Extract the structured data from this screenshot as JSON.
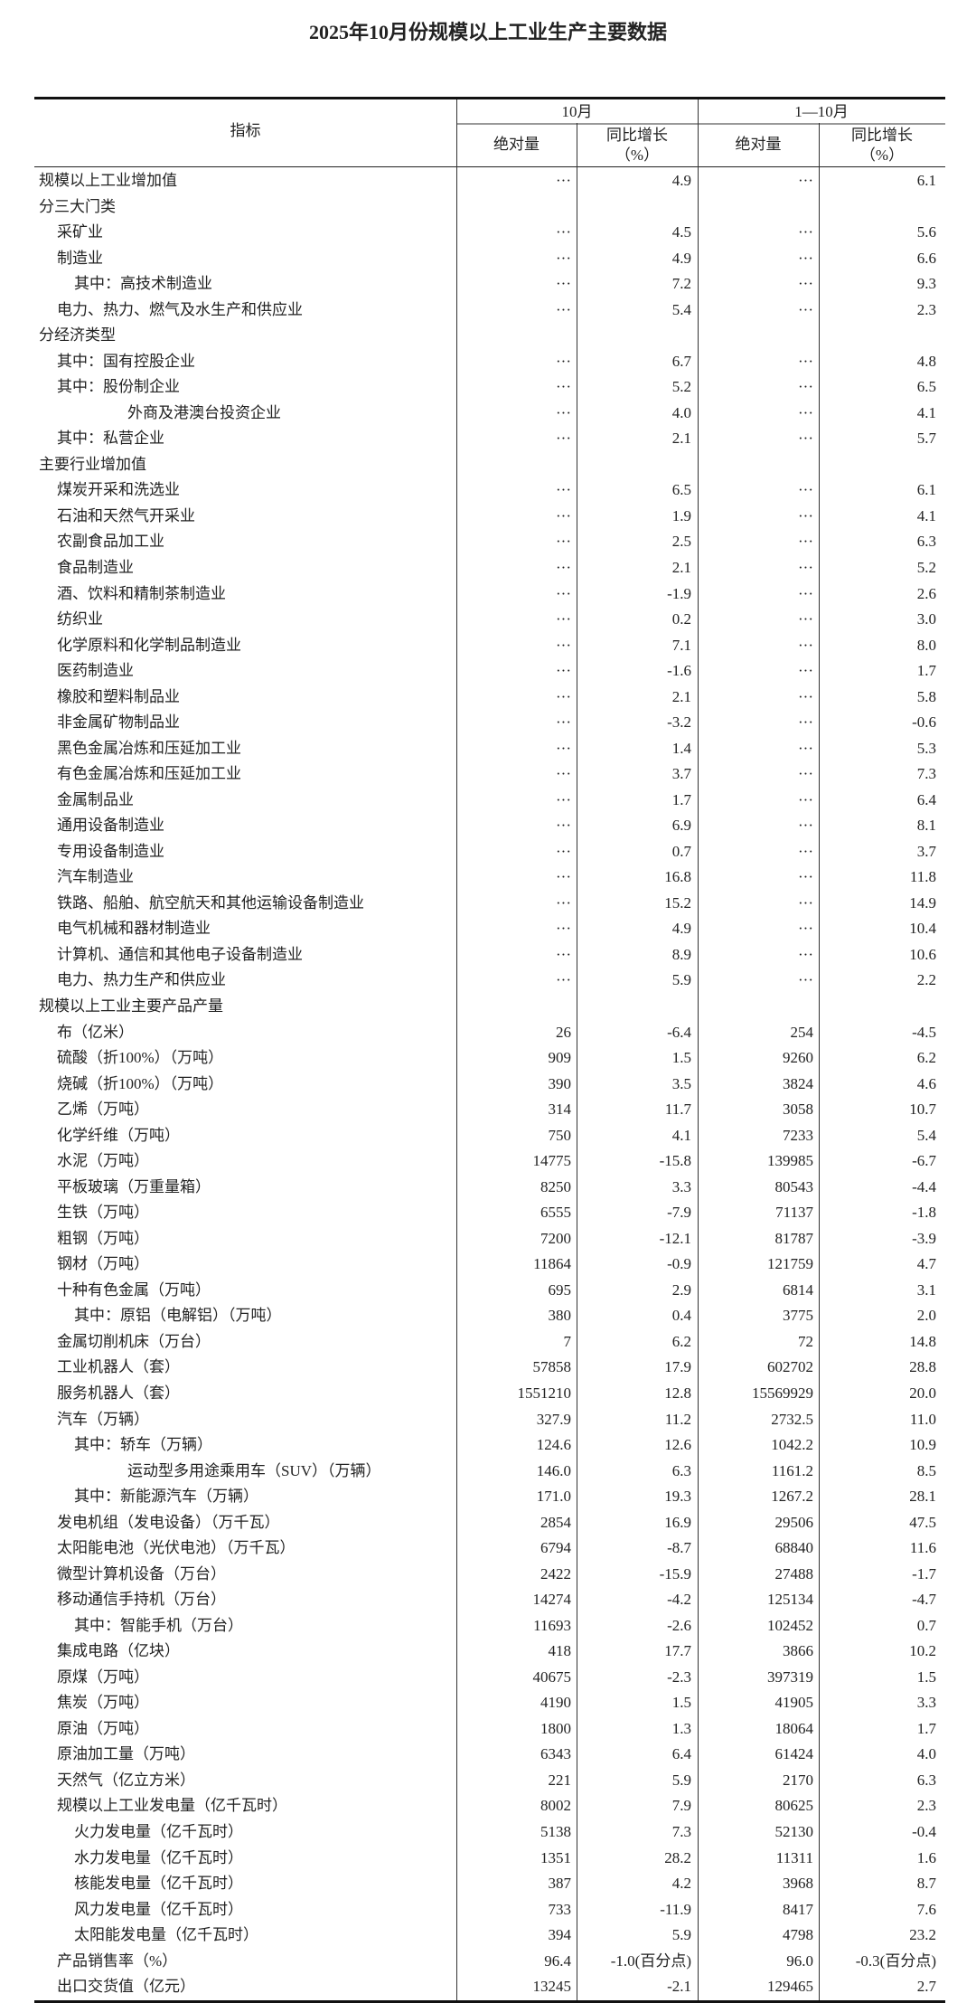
{
  "title": "2025年10月份规模以上工业生产主要数据",
  "header": {
    "indicator": "指标",
    "period_month": "10月",
    "period_ytd": "1—10月",
    "absolute": "绝对量",
    "yoy_line1": "同比增长",
    "yoy_line2": "（%）"
  },
  "rows": [
    {
      "label": "规模以上工业增加值",
      "level": 0,
      "values": [
        "···",
        "4.9",
        "···",
        "6.1"
      ]
    },
    {
      "label": "分三大门类",
      "level": 0,
      "values": []
    },
    {
      "label": "采矿业",
      "level": 1,
      "values": [
        "···",
        "4.5",
        "···",
        "5.6"
      ]
    },
    {
      "label": "制造业",
      "level": 1,
      "values": [
        "···",
        "4.9",
        "···",
        "6.6"
      ]
    },
    {
      "label": "其中：高技术制造业",
      "level": 2,
      "values": [
        "···",
        "7.2",
        "···",
        "9.3"
      ]
    },
    {
      "label": "电力、热力、燃气及水生产和供应业",
      "level": 1,
      "values": [
        "···",
        "5.4",
        "···",
        "2.3"
      ]
    },
    {
      "label": "分经济类型",
      "level": 0,
      "values": []
    },
    {
      "label": "其中：国有控股企业",
      "level": 1,
      "values": [
        "···",
        "6.7",
        "···",
        "4.8"
      ]
    },
    {
      "label": "其中：股份制企业",
      "level": 1,
      "values": [
        "···",
        "5.2",
        "···",
        "6.5"
      ]
    },
    {
      "label": "外商及港澳台投资企业",
      "level": 3,
      "values": [
        "···",
        "4.0",
        "···",
        "4.1"
      ]
    },
    {
      "label": "其中：私营企业",
      "level": 1,
      "values": [
        "···",
        "2.1",
        "···",
        "5.7"
      ]
    },
    {
      "label": "主要行业增加值",
      "level": 0,
      "values": []
    },
    {
      "label": "煤炭开采和洗选业",
      "level": 1,
      "values": [
        "···",
        "6.5",
        "···",
        "6.1"
      ]
    },
    {
      "label": "石油和天然气开采业",
      "level": 1,
      "values": [
        "···",
        "1.9",
        "···",
        "4.1"
      ]
    },
    {
      "label": "农副食品加工业",
      "level": 1,
      "values": [
        "···",
        "2.5",
        "···",
        "6.3"
      ]
    },
    {
      "label": "食品制造业",
      "level": 1,
      "values": [
        "···",
        "2.1",
        "···",
        "5.2"
      ]
    },
    {
      "label": "酒、饮料和精制茶制造业",
      "level": 1,
      "values": [
        "···",
        "-1.9",
        "···",
        "2.6"
      ]
    },
    {
      "label": "纺织业",
      "level": 1,
      "values": [
        "···",
        "0.2",
        "···",
        "3.0"
      ]
    },
    {
      "label": "化学原料和化学制品制造业",
      "level": 1,
      "values": [
        "···",
        "7.1",
        "···",
        "8.0"
      ]
    },
    {
      "label": "医药制造业",
      "level": 1,
      "values": [
        "···",
        "-1.6",
        "···",
        "1.7"
      ]
    },
    {
      "label": "橡胶和塑料制品业",
      "level": 1,
      "values": [
        "···",
        "2.1",
        "···",
        "5.8"
      ]
    },
    {
      "label": "非金属矿物制品业",
      "level": 1,
      "values": [
        "···",
        "-3.2",
        "···",
        "-0.6"
      ]
    },
    {
      "label": "黑色金属冶炼和压延加工业",
      "level": 1,
      "values": [
        "···",
        "1.4",
        "···",
        "5.3"
      ]
    },
    {
      "label": "有色金属冶炼和压延加工业",
      "level": 1,
      "values": [
        "···",
        "3.7",
        "···",
        "7.3"
      ]
    },
    {
      "label": "金属制品业",
      "level": 1,
      "values": [
        "···",
        "1.7",
        "···",
        "6.4"
      ]
    },
    {
      "label": "通用设备制造业",
      "level": 1,
      "values": [
        "···",
        "6.9",
        "···",
        "8.1"
      ]
    },
    {
      "label": "专用设备制造业",
      "level": 1,
      "values": [
        "···",
        "0.7",
        "···",
        "3.7"
      ]
    },
    {
      "label": "汽车制造业",
      "level": 1,
      "values": [
        "···",
        "16.8",
        "···",
        "11.8"
      ]
    },
    {
      "label": "铁路、船舶、航空航天和其他运输设备制造业",
      "level": 1,
      "values": [
        "···",
        "15.2",
        "···",
        "14.9"
      ]
    },
    {
      "label": "电气机械和器材制造业",
      "level": 1,
      "values": [
        "···",
        "4.9",
        "···",
        "10.4"
      ]
    },
    {
      "label": "计算机、通信和其他电子设备制造业",
      "level": 1,
      "values": [
        "···",
        "8.9",
        "···",
        "10.6"
      ]
    },
    {
      "label": "电力、热力生产和供应业",
      "level": 1,
      "values": [
        "···",
        "5.9",
        "···",
        "2.2"
      ]
    },
    {
      "label": "规模以上工业主要产品产量",
      "level": 0,
      "values": []
    },
    {
      "label": "布（亿米）",
      "level": 1,
      "values": [
        "26",
        "-6.4",
        "254",
        "-4.5"
      ]
    },
    {
      "label": "硫酸（折100%）（万吨）",
      "level": 1,
      "values": [
        "909",
        "1.5",
        "9260",
        "6.2"
      ]
    },
    {
      "label": "烧碱（折100%）（万吨）",
      "level": 1,
      "values": [
        "390",
        "3.5",
        "3824",
        "4.6"
      ]
    },
    {
      "label": "乙烯（万吨）",
      "level": 1,
      "values": [
        "314",
        "11.7",
        "3058",
        "10.7"
      ]
    },
    {
      "label": "化学纤维（万吨）",
      "level": 1,
      "values": [
        "750",
        "4.1",
        "7233",
        "5.4"
      ]
    },
    {
      "label": "水泥（万吨）",
      "level": 1,
      "values": [
        "14775",
        "-15.8",
        "139985",
        "-6.7"
      ]
    },
    {
      "label": "平板玻璃（万重量箱）",
      "level": 1,
      "values": [
        "8250",
        "3.3",
        "80543",
        "-4.4"
      ]
    },
    {
      "label": "生铁（万吨）",
      "level": 1,
      "values": [
        "6555",
        "-7.9",
        "71137",
        "-1.8"
      ]
    },
    {
      "label": "粗钢（万吨）",
      "level": 1,
      "values": [
        "7200",
        "-12.1",
        "81787",
        "-3.9"
      ]
    },
    {
      "label": "钢材（万吨）",
      "level": 1,
      "values": [
        "11864",
        "-0.9",
        "121759",
        "4.7"
      ]
    },
    {
      "label": "十种有色金属（万吨）",
      "level": 1,
      "values": [
        "695",
        "2.9",
        "6814",
        "3.1"
      ]
    },
    {
      "label": "其中：原铝（电解铝）（万吨）",
      "level": 2,
      "values": [
        "380",
        "0.4",
        "3775",
        "2.0"
      ]
    },
    {
      "label": "金属切削机床（万台）",
      "level": 1,
      "values": [
        "7",
        "6.2",
        "72",
        "14.8"
      ]
    },
    {
      "label": "工业机器人（套）",
      "level": 1,
      "values": [
        "57858",
        "17.9",
        "602702",
        "28.8"
      ]
    },
    {
      "label": "服务机器人（套）",
      "level": 1,
      "values": [
        "1551210",
        "12.8",
        "15569929",
        "20.0"
      ]
    },
    {
      "label": "汽车（万辆）",
      "level": 1,
      "values": [
        "327.9",
        "11.2",
        "2732.5",
        "11.0"
      ]
    },
    {
      "label": "其中：轿车（万辆）",
      "level": 2,
      "values": [
        "124.6",
        "12.6",
        "1042.2",
        "10.9"
      ]
    },
    {
      "label": "运动型多用途乘用车（SUV）（万辆）",
      "level": 3,
      "values": [
        "146.0",
        "6.3",
        "1161.2",
        "8.5"
      ]
    },
    {
      "label": "其中：新能源汽车（万辆）",
      "level": 2,
      "values": [
        "171.0",
        "19.3",
        "1267.2",
        "28.1"
      ]
    },
    {
      "label": "发电机组（发电设备）（万千瓦）",
      "level": 1,
      "values": [
        "2854",
        "16.9",
        "29506",
        "47.5"
      ]
    },
    {
      "label": "太阳能电池（光伏电池）（万千瓦）",
      "level": 1,
      "values": [
        "6794",
        "-8.7",
        "68840",
        "11.6"
      ]
    },
    {
      "label": "微型计算机设备（万台）",
      "level": 1,
      "values": [
        "2422",
        "-15.9",
        "27488",
        "-1.7"
      ]
    },
    {
      "label": "移动通信手持机（万台）",
      "level": 1,
      "values": [
        "14274",
        "-4.2",
        "125134",
        "-4.7"
      ]
    },
    {
      "label": "其中：智能手机（万台）",
      "level": 2,
      "values": [
        "11693",
        "-2.6",
        "102452",
        "0.7"
      ]
    },
    {
      "label": "集成电路（亿块）",
      "level": 1,
      "values": [
        "418",
        "17.7",
        "3866",
        "10.2"
      ]
    },
    {
      "label": "原煤（万吨）",
      "level": 1,
      "values": [
        "40675",
        "-2.3",
        "397319",
        "1.5"
      ]
    },
    {
      "label": "焦炭（万吨）",
      "level": 1,
      "values": [
        "4190",
        "1.5",
        "41905",
        "3.3"
      ]
    },
    {
      "label": "原油（万吨）",
      "level": 1,
      "values": [
        "1800",
        "1.3",
        "18064",
        "1.7"
      ]
    },
    {
      "label": "原油加工量（万吨）",
      "level": 1,
      "values": [
        "6343",
        "6.4",
        "61424",
        "4.0"
      ]
    },
    {
      "label": "天然气（亿立方米）",
      "level": 1,
      "values": [
        "221",
        "5.9",
        "2170",
        "6.3"
      ]
    },
    {
      "label": "规模以上工业发电量（亿千瓦时）",
      "level": 1,
      "values": [
        "8002",
        "7.9",
        "80625",
        "2.3"
      ]
    },
    {
      "label": "火力发电量（亿千瓦时）",
      "level": 2,
      "values": [
        "5138",
        "7.3",
        "52130",
        "-0.4"
      ]
    },
    {
      "label": "水力发电量（亿千瓦时）",
      "level": 2,
      "values": [
        "1351",
        "28.2",
        "11311",
        "1.6"
      ]
    },
    {
      "label": "核能发电量（亿千瓦时）",
      "level": 2,
      "values": [
        "387",
        "4.2",
        "3968",
        "8.7"
      ]
    },
    {
      "label": "风力发电量（亿千瓦时）",
      "level": 2,
      "values": [
        "733",
        "-11.9",
        "8417",
        "7.6"
      ]
    },
    {
      "label": "太阳能发电量（亿千瓦时）",
      "level": 2,
      "values": [
        "394",
        "5.9",
        "4798",
        "23.2"
      ]
    },
    {
      "label": "产品销售率（%）",
      "level": 1,
      "values": [
        "96.4",
        "-1.0(百分点)",
        "96.0",
        "-0.3(百分点)"
      ]
    },
    {
      "label": "出口交货值（亿元）",
      "level": 1,
      "values": [
        "13245",
        "-2.1",
        "129465",
        "2.7"
      ]
    }
  ]
}
